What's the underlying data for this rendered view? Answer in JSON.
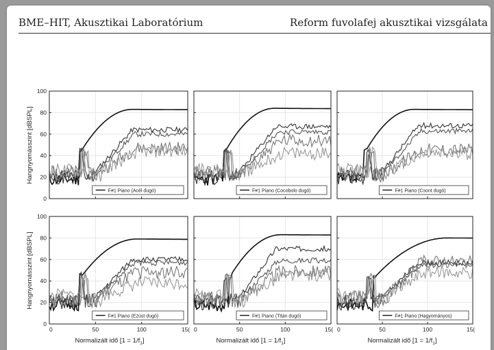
{
  "header": {
    "left": "BME–HIT, Akusztikai Laboratórium",
    "right": "Reform fuvolafej akusztikai vizsgálata"
  },
  "figure": {
    "ylabel": "Hangnyomásszint [dBSPL]",
    "xlabel_main": "Normalizált idő [1 = 1/f",
    "xlabel_sub": "1",
    "xlabel_end": "]"
  },
  "chart_data": [
    {
      "type": "line",
      "legend": "F#1 Piano (Acél dugó)",
      "xlim": [
        0,
        150
      ],
      "ylim": [
        0,
        100
      ],
      "yticks": [
        "0",
        "20",
        "40",
        "60",
        "80",
        "100"
      ],
      "xticks": [
        "0",
        "50",
        "100",
        "15("
      ],
      "seed": 11,
      "series": [
        {
          "color": "#111111",
          "plateau": 83,
          "rise": [
            33,
            90
          ]
        },
        {
          "color": "#333333",
          "plateau": 64
        },
        {
          "color": "#555555",
          "plateau": 60
        },
        {
          "color": "#777777",
          "plateau": 47
        },
        {
          "color": "#999999",
          "plateau": 44
        }
      ]
    },
    {
      "type": "line",
      "legend": "F#1 Piano (Cocobolo dugó)",
      "xlim": [
        0,
        150
      ],
      "ylim": [
        0,
        100
      ],
      "yticks": [
        "0",
        "20",
        "40",
        "60",
        "80",
        "100"
      ],
      "xticks": [
        "0",
        "50",
        "100",
        "15("
      ],
      "seed": 23,
      "series": [
        {
          "color": "#111111",
          "plateau": 84,
          "rise": [
            33,
            88
          ]
        },
        {
          "color": "#333333",
          "plateau": 67
        },
        {
          "color": "#555555",
          "plateau": 62
        },
        {
          "color": "#777777",
          "plateau": 54
        },
        {
          "color": "#999999",
          "plateau": 42
        }
      ]
    },
    {
      "type": "line",
      "legend": "F#1 Piano (Csont dugó)",
      "xlim": [
        0,
        150
      ],
      "ylim": [
        0,
        100
      ],
      "yticks": [
        "0",
        "20",
        "40",
        "60",
        "80",
        "100"
      ],
      "xticks": [
        "0",
        "50",
        "100",
        "15("
      ],
      "seed": 37,
      "series": [
        {
          "color": "#111111",
          "plateau": 83,
          "rise": [
            30,
            85
          ]
        },
        {
          "color": "#333333",
          "plateau": 68
        },
        {
          "color": "#555555",
          "plateau": 63
        },
        {
          "color": "#777777",
          "plateau": 46
        },
        {
          "color": "#999999",
          "plateau": 42
        }
      ]
    },
    {
      "type": "line",
      "legend": "F#1 Piano (Ezüst dugó)",
      "xlim": [
        0,
        150
      ],
      "ylim": [
        0,
        100
      ],
      "yticks": [
        "0",
        "20",
        "40",
        "60",
        "80",
        "100"
      ],
      "xticks": [
        "0",
        "50",
        "100",
        "15("
      ],
      "seed": 51,
      "series": [
        {
          "color": "#111111",
          "plateau": 79,
          "rise": [
            33,
            95
          ]
        },
        {
          "color": "#333333",
          "plateau": 60
        },
        {
          "color": "#555555",
          "plateau": 57
        },
        {
          "color": "#777777",
          "plateau": 48
        },
        {
          "color": "#999999",
          "plateau": 38
        }
      ]
    },
    {
      "type": "line",
      "legend": "F#1 Piano (Titán dugó)",
      "xlim": [
        0,
        150
      ],
      "ylim": [
        0,
        100
      ],
      "yticks": [
        "0",
        "20",
        "40",
        "60",
        "80",
        "100"
      ],
      "xticks": [
        "0",
        "50",
        "100",
        "15("
      ],
      "seed": 67,
      "series": [
        {
          "color": "#111111",
          "plateau": 83,
          "rise": [
            38,
            95
          ]
        },
        {
          "color": "#333333",
          "plateau": 70
        },
        {
          "color": "#555555",
          "plateau": 59
        },
        {
          "color": "#777777",
          "plateau": 49
        },
        {
          "color": "#999999",
          "plateau": 45
        }
      ]
    },
    {
      "type": "line",
      "legend": "F#1 Piano (Hagyományos)",
      "xlim": [
        0,
        150
      ],
      "ylim": [
        0,
        100
      ],
      "yticks": [
        "0",
        "20",
        "40",
        "60",
        "80",
        "100"
      ],
      "xticks": [
        "0",
        "50",
        "100",
        "15("
      ],
      "seed": 83,
      "series": [
        {
          "color": "#111111",
          "plateau": 80,
          "rise": [
            40,
            122
          ]
        },
        {
          "color": "#333333",
          "plateau": 57
        },
        {
          "color": "#555555",
          "plateau": 55
        },
        {
          "color": "#777777",
          "plateau": 58
        },
        {
          "color": "#999999",
          "plateau": 48
        }
      ]
    }
  ]
}
